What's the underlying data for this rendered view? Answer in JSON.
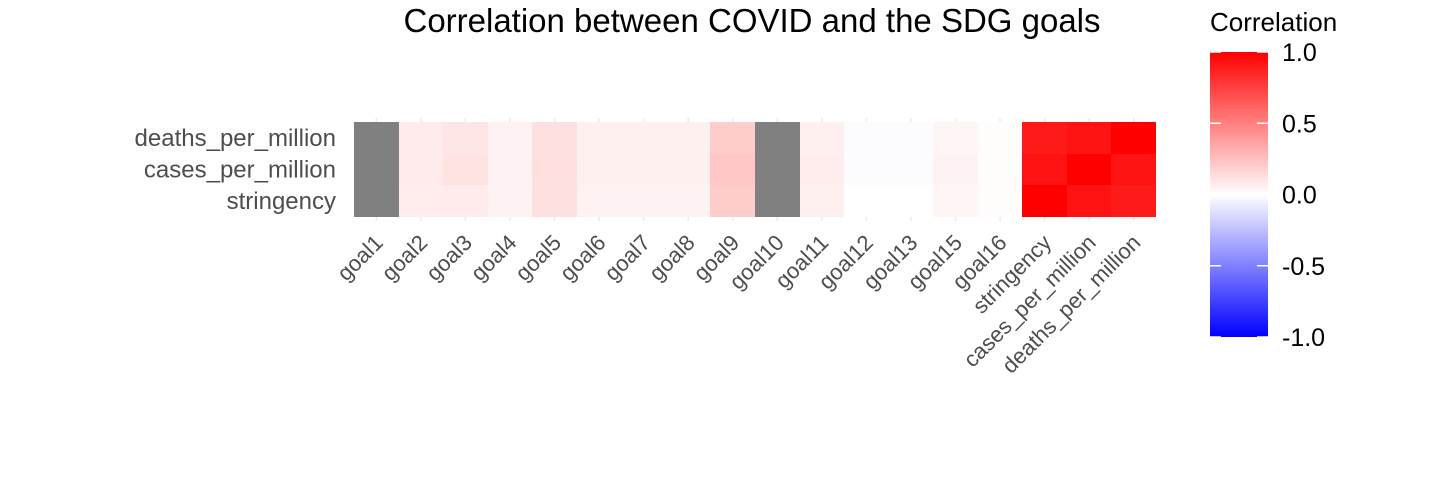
{
  "chart_data": {
    "type": "heatmap",
    "title": "Correlation between COVID and the SDG goals",
    "xlabel": "",
    "ylabel": "",
    "x_categories": [
      "goal1",
      "goal2",
      "goal3",
      "goal4",
      "goal5",
      "goal6",
      "goal7",
      "goal8",
      "goal9",
      "goal10",
      "goal11",
      "goal12",
      "goal13",
      "goal15",
      "goal16",
      "stringency",
      "cases_per_million",
      "deaths_per_million"
    ],
    "y_categories": [
      "deaths_per_million",
      "cases_per_million",
      "stringency"
    ],
    "values": [
      [
        null,
        0.08,
        0.1,
        0.05,
        0.12,
        0.06,
        0.06,
        0.06,
        0.2,
        null,
        0.06,
        -0.01,
        -0.01,
        0.04,
        0.01,
        0.9,
        0.92,
        1.0
      ],
      [
        null,
        0.08,
        0.11,
        0.05,
        0.13,
        0.06,
        0.06,
        0.06,
        0.22,
        null,
        0.07,
        -0.01,
        -0.01,
        0.05,
        0.01,
        0.93,
        1.0,
        0.92
      ],
      [
        null,
        0.07,
        0.08,
        0.05,
        0.12,
        0.05,
        0.05,
        0.05,
        0.2,
        null,
        0.06,
        0.0,
        0.0,
        0.04,
        0.01,
        1.0,
        0.93,
        0.9
      ]
    ],
    "missing_color": "#808080",
    "color_scale": {
      "low": "#0000ff",
      "mid": "#ffffff",
      "high": "#ff0000",
      "limits": [
        -1,
        1
      ]
    },
    "legend": {
      "title": "Correlation",
      "position": "right",
      "ticks": [
        1.0,
        0.5,
        0.0,
        -0.5,
        -1.0
      ],
      "tick_labels": [
        "1.0",
        "0.5",
        "0.0",
        "-0.5",
        "-1.0"
      ]
    },
    "grid": false
  }
}
